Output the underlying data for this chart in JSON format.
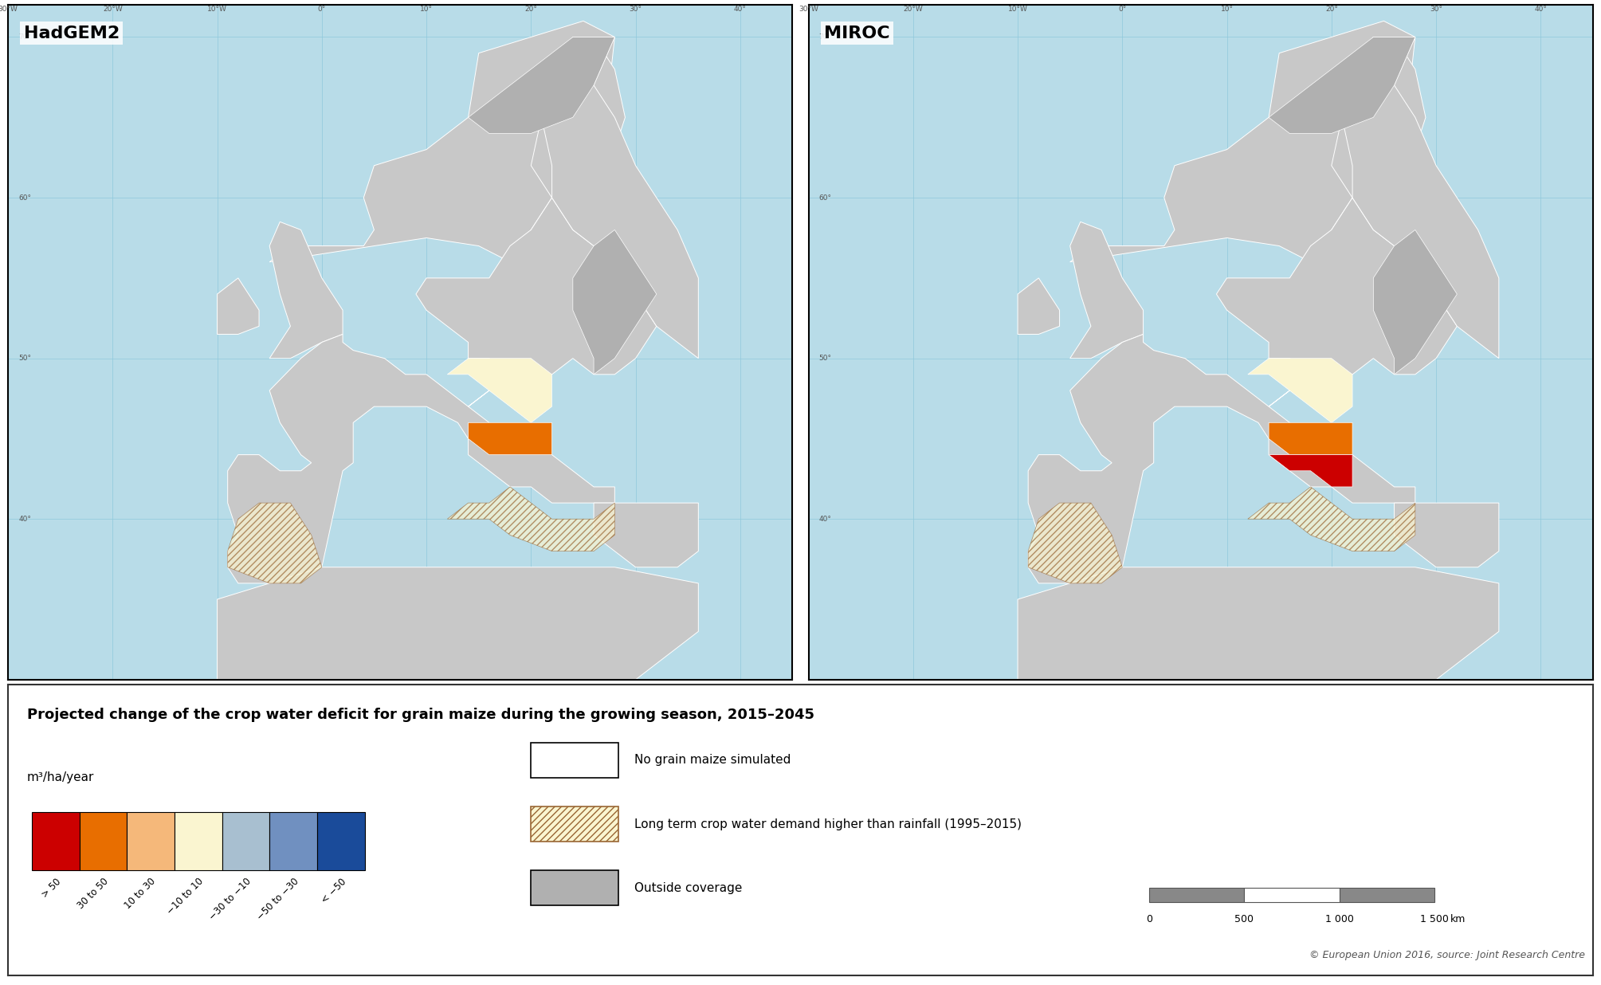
{
  "title": "Projected change of the crop water deficit for grain maize during the growing season, 2015–2045",
  "unit_label": "m³/ha/year",
  "left_map_title": "HadGEM2",
  "right_map_title": "MIROC",
  "colorbar_colors": [
    "#cc0000",
    "#e86e00",
    "#f5b87a",
    "#faf5d0",
    "#a8bfd0",
    "#7090c0",
    "#1a4b9a"
  ],
  "colorbar_labels": [
    "> 50",
    "30 to 50",
    "10 to 30",
    "−10 to 10",
    "−30 to −10",
    "−50 to −30",
    "< −50"
  ],
  "legend_no_grain": "No grain maize simulated",
  "legend_hatch": "Long term crop water demand higher than rainfall (1995–2015)",
  "legend_outside": "Outside coverage",
  "copyright": "© European Union 2016, source: Joint Research Centre",
  "scalebar_values": [
    0,
    500,
    1000,
    1500
  ],
  "scalebar_unit": "km",
  "map_bg_color": "#b8dce8",
  "land_color": "#c8c8c8",
  "border_color": "#ffffff",
  "graticule_color": "#8ec8dc",
  "legend_panel_bg": "#ffffff",
  "legend_panel_border": "#333333"
}
